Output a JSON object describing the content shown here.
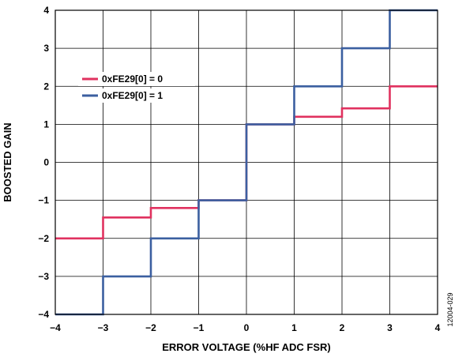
{
  "chart_data": {
    "type": "line",
    "xlabel": "ERROR VOLTAGE (%HF ADC FSR)",
    "ylabel": "BOOSTED GAIN",
    "xlim": [
      -4,
      4
    ],
    "ylim": [
      -4,
      4
    ],
    "x_ticks": [
      -4,
      -3,
      -2,
      -1,
      0,
      1,
      2,
      3,
      4
    ],
    "y_ticks": [
      -4,
      -3,
      -2,
      -1,
      0,
      1,
      2,
      3,
      4
    ],
    "grid": true,
    "legend_position": "upper-left",
    "series": [
      {
        "name": "0xFE29[0] = 0",
        "color": "#e0325f",
        "step": true,
        "x": [
          -4,
          -3,
          -3,
          -2,
          -2,
          -1,
          -1,
          0,
          0,
          1,
          1,
          2,
          2,
          3,
          3,
          4
        ],
        "y": [
          -2,
          -2,
          -1.45,
          -1.45,
          -1.2,
          -1.2,
          -1,
          -1,
          1,
          1,
          1.2,
          1.2,
          1.42,
          1.42,
          2,
          2
        ]
      },
      {
        "name": "0xFE29[0] = 1",
        "color": "#3b5fa0",
        "step": true,
        "x": [
          -4,
          -3,
          -3,
          -2,
          -2,
          -1,
          -1,
          0,
          0,
          1,
          1,
          2,
          2,
          3,
          3,
          4
        ],
        "y": [
          -4,
          -4,
          -3,
          -3,
          -2,
          -2,
          -1,
          -1,
          1,
          1,
          2,
          2,
          3,
          3,
          4,
          4
        ]
      }
    ],
    "figure_id": "12004-029"
  }
}
